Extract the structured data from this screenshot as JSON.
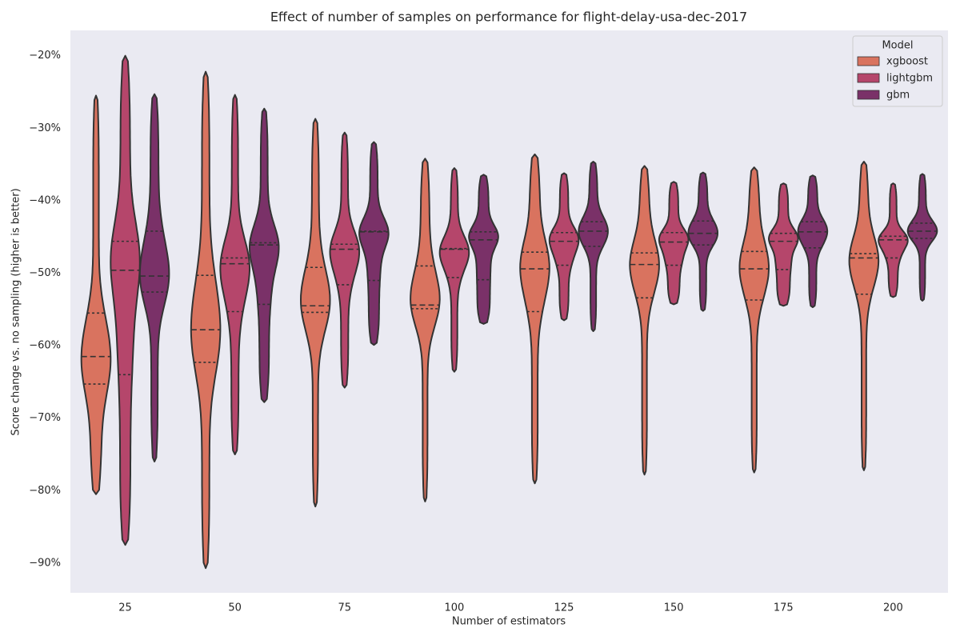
{
  "chart_data": {
    "type": "violin",
    "title": "Effect of number of samples on performance for flight-delay-usa-dec-2017",
    "x_label": "Number of estimators",
    "y_label": "Score change vs. no sampling (higher is better)",
    "categories": [
      "25",
      "50",
      "75",
      "100",
      "125",
      "150",
      "175",
      "200"
    ],
    "ylim": [
      -94.1,
      -16.5
    ],
    "yticks": [
      {
        "value": -20,
        "label": "−20%"
      },
      {
        "value": -30,
        "label": "−30%"
      },
      {
        "value": -40,
        "label": "−40%"
      },
      {
        "value": -50,
        "label": "−50%"
      },
      {
        "value": -60,
        "label": "−60%"
      },
      {
        "value": -70,
        "label": "−70%"
      },
      {
        "value": -80,
        "label": "−80%"
      },
      {
        "value": -90,
        "label": "−90%"
      }
    ],
    "legend_title": "Model",
    "legend_position": "upper right",
    "series": [
      {
        "name": "xgboost",
        "color": "#d9735f",
        "values": [
          {
            "min": -80.5,
            "q1": -65.3,
            "median": -61.5,
            "q3": -55.5,
            "max": -25.5
          },
          {
            "min": -90.7,
            "q1": -62.3,
            "median": -57.8,
            "q3": -50.3,
            "max": -22.2
          },
          {
            "min": -82.2,
            "q1": -55.4,
            "median": -54.5,
            "q3": -49.2,
            "max": -28.7
          },
          {
            "min": -81.5,
            "q1": -54.9,
            "median": -54.4,
            "q3": -49.0,
            "max": -34.2
          },
          {
            "min": -79.0,
            "q1": -55.3,
            "median": -49.4,
            "q3": -47.1,
            "max": -33.6
          },
          {
            "min": -77.8,
            "q1": -53.4,
            "median": -48.8,
            "q3": -47.2,
            "max": -35.2
          },
          {
            "min": -77.5,
            "q1": -53.7,
            "median": -49.4,
            "q3": -47.0,
            "max": -35.4
          },
          {
            "min": -77.2,
            "q1": -52.9,
            "median": -47.9,
            "q3": -47.3,
            "max": -34.6
          }
        ]
      },
      {
        "name": "lightgbm",
        "color": "#b5466b",
        "values": [
          {
            "min": -87.5,
            "q1": -64.0,
            "median": -49.6,
            "q3": -45.6,
            "max": -20.0
          },
          {
            "min": -75.0,
            "q1": -55.3,
            "median": -48.7,
            "q3": -47.9,
            "max": -25.4
          },
          {
            "min": -65.8,
            "q1": -51.6,
            "median": -46.7,
            "q3": -46.0,
            "max": -30.6
          },
          {
            "min": -63.6,
            "q1": -50.6,
            "median": -46.7,
            "q3": -46.6,
            "max": -35.5
          },
          {
            "min": -56.5,
            "q1": -48.9,
            "median": -45.6,
            "q3": -44.4,
            "max": -36.2
          },
          {
            "min": -54.3,
            "q1": -48.9,
            "median": -45.7,
            "q3": -44.4,
            "max": -37.4
          },
          {
            "min": -54.5,
            "q1": -49.5,
            "median": -45.6,
            "q3": -44.5,
            "max": -37.6
          },
          {
            "min": -53.3,
            "q1": -47.9,
            "median": -45.4,
            "q3": -44.9,
            "max": -37.6
          }
        ]
      },
      {
        "name": "gbm",
        "color": "#7a3168",
        "values": [
          {
            "min": -76.0,
            "q1": -52.6,
            "median": -50.4,
            "q3": -44.2,
            "max": -25.3
          },
          {
            "min": -67.8,
            "q1": -54.3,
            "median": -46.1,
            "q3": -45.8,
            "max": -27.3
          },
          {
            "min": -59.9,
            "q1": -51.0,
            "median": -44.3,
            "q3": -44.2,
            "max": -31.9
          },
          {
            "min": -57.0,
            "q1": -50.9,
            "median": -45.4,
            "q3": -44.3,
            "max": -36.4
          },
          {
            "min": -58.0,
            "q1": -46.3,
            "median": -44.2,
            "q3": -42.9,
            "max": -34.6
          },
          {
            "min": -55.2,
            "q1": -46.1,
            "median": -44.5,
            "q3": -42.8,
            "max": -36.1
          },
          {
            "min": -54.7,
            "q1": -46.5,
            "median": -44.3,
            "q3": -42.9,
            "max": -36.5
          },
          {
            "min": -53.8,
            "q1": -45.2,
            "median": -44.2,
            "q3": -43.1,
            "max": -36.3
          }
        ]
      }
    ]
  }
}
